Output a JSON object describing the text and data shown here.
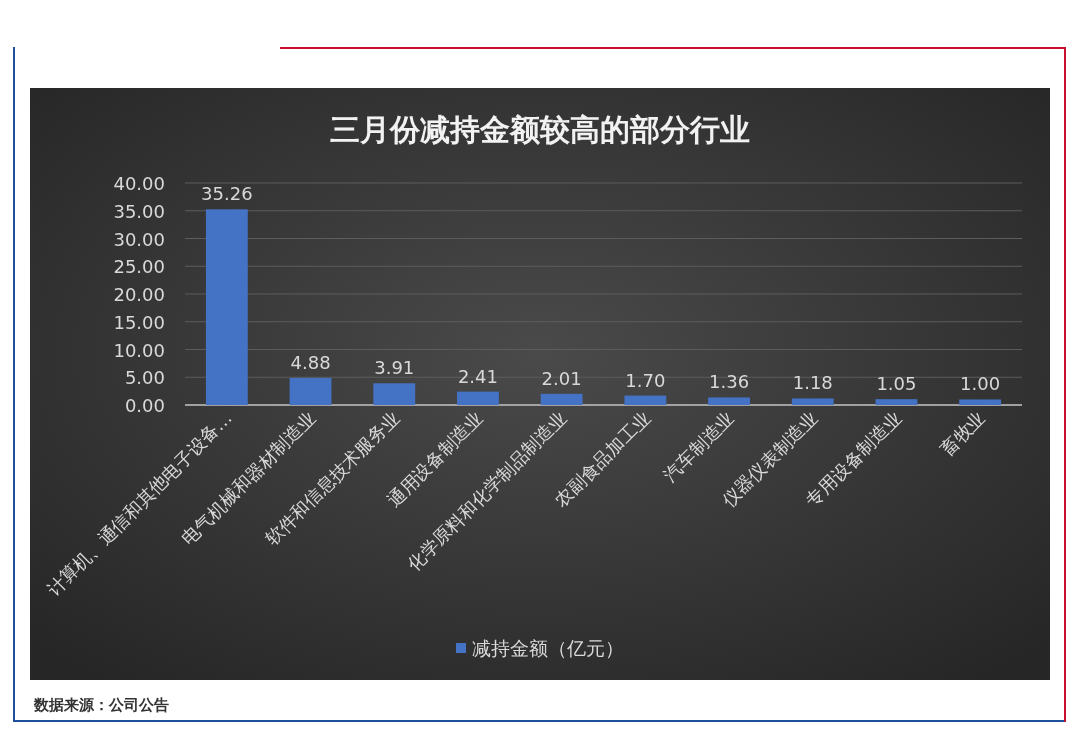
{
  "chart_data": {
    "type": "bar",
    "title": "三月份减持金额较高的部分行业",
    "categories": [
      "计算机、通信和其他电子设备…",
      "电气机械和器材制造业",
      "软件和信息技术服务业",
      "通用设备制造业",
      "化学原料和化学制品制造业",
      "农副食品加工业",
      "汽车制造业",
      "仪器仪表制造业",
      "专用设备制造业",
      "畜牧业"
    ],
    "series": [
      {
        "name": "减持金额（亿元）",
        "color": "#4472c4",
        "values": [
          35.26,
          4.88,
          3.91,
          2.41,
          2.01,
          1.7,
          1.36,
          1.18,
          1.05,
          1.0
        ],
        "value_labels": [
          "35.26",
          "4.88",
          "3.91",
          "2.41",
          "2.01",
          "1.70",
          "1.36",
          "1.18",
          "1.05",
          "1.00"
        ]
      }
    ],
    "ylim": [
      0,
      40
    ],
    "yticks": [
      {
        "value": 0,
        "label": "0.00"
      },
      {
        "value": 5,
        "label": "5.00"
      },
      {
        "value": 10,
        "label": "10.00"
      },
      {
        "value": 15,
        "label": "15.00"
      },
      {
        "value": 20,
        "label": "20.00"
      },
      {
        "value": 25,
        "label": "25.00"
      },
      {
        "value": 30,
        "label": "30.00"
      },
      {
        "value": 35,
        "label": "35.00"
      },
      {
        "value": 40,
        "label": "40.00"
      }
    ],
    "grid": "y",
    "legend": "bottom",
    "annotations": [
      "数据来源：公司公告"
    ]
  }
}
